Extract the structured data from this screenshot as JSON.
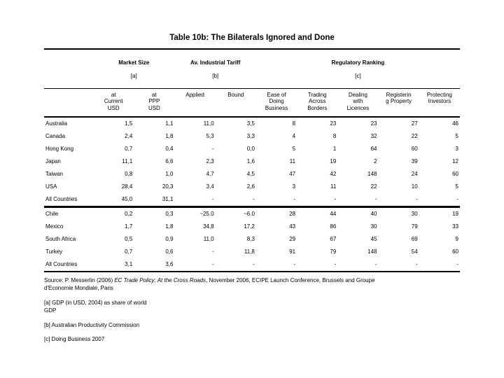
{
  "title": "Table 10b: The Bilaterals Ignored and Done",
  "table": {
    "groups": [
      {
        "title": "Market Size",
        "tag": "[a]"
      },
      {
        "title": "Av. Industrial Tariff",
        "tag": "[b]"
      },
      {
        "title": "Regulatory Ranking",
        "tag": "[c]"
      }
    ],
    "sub_columns": [
      "at\nCurrent\nUSD",
      "at\nPPP\nUSD",
      "Applied",
      "Bound",
      "Ease of\nDoing\nBusiness",
      "Trading\nAcross\nBorders",
      "Dealing\nwith\nLicences",
      "Registerin\ng Property",
      "Protecting\nInvestors"
    ],
    "sections": [
      {
        "rows": [
          {
            "country": "Australia",
            "values": [
              "1,5",
              "1,1",
              "11,0",
              "3,5",
              "8",
              "23",
              "23",
              "27",
              "46"
            ]
          },
          {
            "country": "Canada",
            "values": [
              "2,4",
              "1,8",
              "5,3",
              "3,3",
              "4",
              "8",
              "32",
              "22",
              "5"
            ]
          },
          {
            "country": "Hong Kong",
            "values": [
              "0,7",
              "0,4",
              "-",
              "0,0",
              "5",
              "1",
              "64",
              "60",
              "3"
            ]
          },
          {
            "country": "Japan",
            "values": [
              "11,1",
              "6,6",
              "2,3",
              "1,6",
              "11",
              "19",
              "2",
              "39",
              "12"
            ]
          },
          {
            "country": "Taiwan",
            "values": [
              "0,8",
              "1,0",
              "4,7",
              "4,5",
              "47",
              "42",
              "148",
              "24",
              "60"
            ]
          },
          {
            "country": "USA",
            "values": [
              "28,4",
              "20,3",
              "3,4",
              "2,6",
              "3",
              "11",
              "22",
              "10",
              "5"
            ]
          },
          {
            "country": "All Countries",
            "values": [
              "45,0",
              "31,1",
              "-",
              "-",
              "-",
              "-",
              "-",
              "-",
              "-"
            ]
          }
        ]
      },
      {
        "rows": [
          {
            "country": "Chile",
            "values": [
              "0,2",
              "0,3",
              "~25.0",
              "~6.0",
              "28",
              "44",
              "40",
              "30",
              "19"
            ]
          },
          {
            "country": "Mexico",
            "values": [
              "1,7",
              "1,8",
              "34,8",
              "17,2",
              "43",
              "86",
              "30",
              "79",
              "33"
            ]
          },
          {
            "country": "South Africa",
            "values": [
              "0,5",
              "0,9",
              "11,0",
              "8,3",
              "29",
              "67",
              "45",
              "69",
              "9"
            ]
          },
          {
            "country": "Turkey",
            "values": [
              "0,7",
              "0,6",
              "-",
              "11,8",
              "91",
              "79",
              "148",
              "54",
              "60"
            ]
          },
          {
            "country": "All Countries",
            "values": [
              "3,1",
              "3,6",
              "-",
              "-",
              "-",
              "-",
              "-",
              "-",
              "-"
            ]
          }
        ]
      }
    ]
  },
  "source": {
    "prefix": "Source: P. Messerlin (2006) ",
    "italic": "EC Trade Policy: At the Cross Roads",
    "suffix": ", November 2006, ECIPE Launch Conference, Brussels and Groupe",
    "line2": "d'Economie Mondiale, Paris"
  },
  "notes": {
    "a": "[a] GDP (in USD, 2004) as share of world\nGDP",
    "b": "[b] Australian Productivity Commission",
    "c": "[c] Doing Business 2007"
  }
}
